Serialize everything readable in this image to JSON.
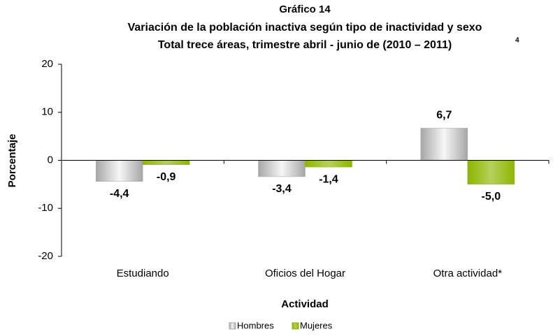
{
  "chart_data": {
    "type": "bar",
    "title": [
      "Gráfico 14",
      "Variación de la población inactiva según tipo de inactividad y sexo",
      "Total trece áreas, trimestre abril - junio de (2010 – 2011)"
    ],
    "title_note": "4",
    "x_label": "Actividad",
    "y_label": "Porcentaje",
    "categories": [
      "Estudiando",
      "Oficios del Hogar",
      "Otra actividad*"
    ],
    "series": [
      {
        "name": "Hombres",
        "color": "#a6a6a6",
        "values": [
          -4.4,
          -3.4,
          6.7
        ],
        "value_labels": [
          "-4,4",
          "-3,4",
          "6,7"
        ]
      },
      {
        "name": "Mujeres",
        "color": "#8db600",
        "values": [
          -0.9,
          -1.4,
          -5.0
        ],
        "value_labels": [
          "-0,9",
          "-1,4",
          "-5,0"
        ]
      }
    ],
    "ylim": [
      -20,
      20
    ],
    "yticks": [
      -20,
      -10,
      0,
      10,
      20
    ],
    "grid": false,
    "legend": "bottom"
  }
}
